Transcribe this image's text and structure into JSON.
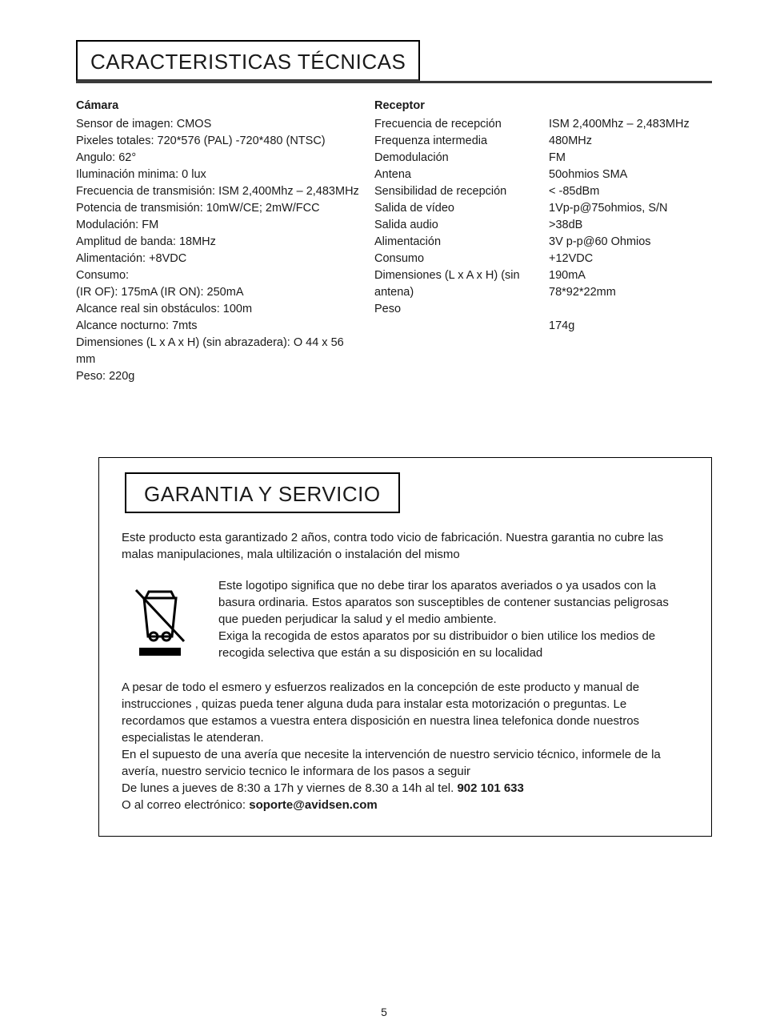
{
  "tech": {
    "heading": "CARACTERISTICAS TÉCNICAS",
    "camera": {
      "title": "Cámara",
      "lines": [
        "Sensor de imagen: CMOS",
        "Pixeles totales: 720*576 (PAL) -720*480 (NTSC)",
        "Angulo: 62°",
        "Iluminación minima: 0 lux",
        "Frecuencia de transmisión: ISM 2,400Mhz – 2,483MHz",
        "Potencia de transmisión: 10mW/CE; 2mW/FCC",
        "Modulación: FM",
        "Amplitud de banda: 18MHz",
        "Alimentación: +8VDC",
        "Consumo:",
        "(IR OF): 175mA  (IR ON): 250mA",
        "Alcance real sin obstáculos: 100m",
        "Alcance nocturno: 7mts",
        "Dimensiones (L x A x H) (sin abrazadera): O 44 x 56 mm",
        "Peso: 220g"
      ]
    },
    "receptor": {
      "title": "Receptor",
      "rows": [
        {
          "label": "Frecuencia de recepción",
          "value": "ISM 2,400Mhz – 2,483MHz"
        },
        {
          "label": "Frequenza intermedia",
          "value": "480MHz"
        },
        {
          "label": "Demodulación",
          "value": "FM"
        },
        {
          "label": "Antena",
          "value": "50ohmios SMA"
        },
        {
          "label": "Sensibilidad de recepción",
          "value": "< -85dBm"
        },
        {
          "label": "Salida de vídeo",
          "value": "1Vp-p@75ohmios, S/N >38dB"
        },
        {
          "label": "Salida audio",
          "value": "3V p-p@60 Ohmios"
        },
        {
          "label": "Alimentación",
          "value": "+12VDC"
        },
        {
          "label": "Consumo",
          "value": "190mA"
        },
        {
          "label": "Dimensiones (L x A x H) (sin antena)",
          "value": "78*92*22mm"
        },
        {
          "label": "Peso",
          "value": "174g"
        }
      ]
    }
  },
  "garantia": {
    "heading": "GARANTIA Y SERVICIO",
    "intro": "Este producto esta garantizado 2 años, contra todo vicio de fabricación. Nuestra garantia no cubre las malas manipulaciones, mala ultilización o instalación del mismo",
    "weee_text_1": "Este logotipo significa que no debe tirar los aparatos averiados o ya usados con la basura ordinaria. Estos aparatos son susceptibles de contener sustancias peligrosas que pueden perjudicar la salud y el medio ambiente.",
    "weee_text_2": "Exiga la recogida de estos aparatos por su distribuidor o bien utilice los medios de recogida selectiva que están a su disposición en su localidad",
    "closing_1": "A pesar de todo el esmero y esfuerzos realizados en la concepción de este producto y manual de instrucciones , quizas pueda tener alguna duda para instalar esta motorización o preguntas. Le recordamos que estamos a vuestra entera disposición en nuestra linea telefonica donde nuestros especialistas le atenderan.",
    "closing_2": "En el supuesto de una avería que necesite la intervención de nuestro servicio técnico, informele de la avería, nuestro servicio tecnico le informara de los pasos a seguir",
    "closing_3_pre": "De lunes a jueves de 8:30 a 17h y viernes de 8.30 a 14h al tel. ",
    "closing_3_bold": "902 101 633",
    "closing_4_pre": "O al correo electrónico: ",
    "closing_4_bold": "soporte@avidsen.com"
  },
  "page_number": "5"
}
